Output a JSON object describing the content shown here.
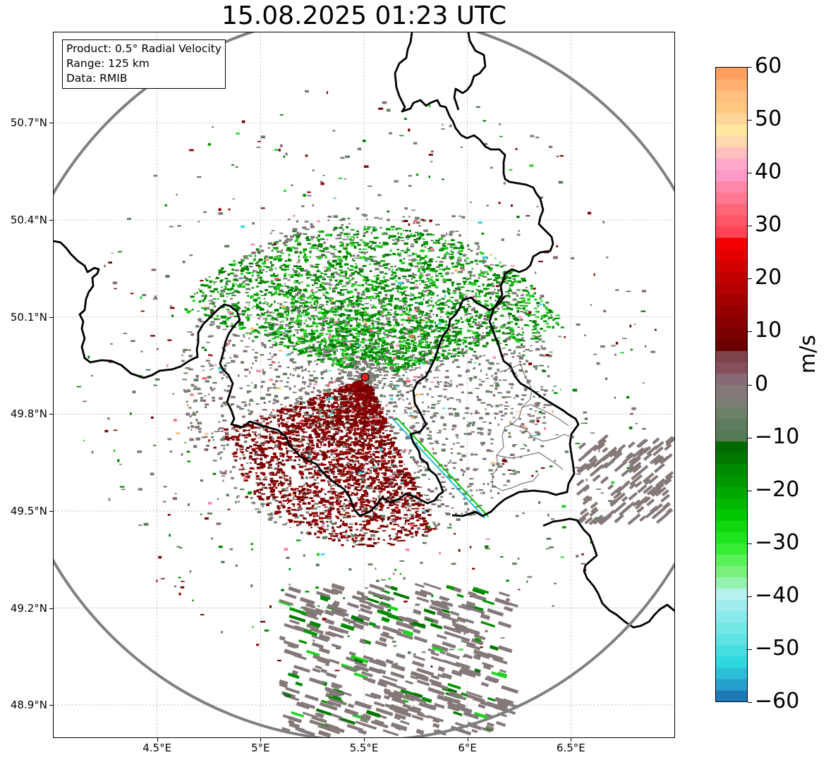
{
  "title": "15.08.2025 01:23 UTC",
  "info": {
    "product": "Product: 0.5° Radial Velocity",
    "range": "Range: 125 km",
    "source": "Data: RMIB"
  },
  "map": {
    "lon_range": [
      4.0,
      7.0
    ],
    "lat_range": [
      48.8,
      50.98
    ],
    "radar_site": {
      "lon": 5.505,
      "lat": 49.914
    },
    "range_km": 125,
    "lat_ticks": [
      "50.7°N",
      "50.4°N",
      "50.1°N",
      "49.8°N",
      "49.5°N",
      "49.2°N",
      "48.9°N"
    ],
    "lat_values": [
      50.7,
      50.4,
      50.1,
      49.8,
      49.5,
      49.2,
      48.9
    ],
    "lon_ticks": [
      "4.5°E",
      "5°E",
      "5.5°E",
      "6°E",
      "6.5°E"
    ],
    "lon_values": [
      4.5,
      5.0,
      5.5,
      6.0,
      6.5
    ]
  },
  "colorbar": {
    "unit": "m/s",
    "min": -60,
    "max": 60,
    "tick_labels": [
      "60",
      "50",
      "40",
      "30",
      "20",
      "10",
      "0",
      "−10",
      "−20",
      "−30",
      "−40",
      "−50",
      "−60"
    ],
    "tick_values": [
      60,
      50,
      40,
      30,
      20,
      10,
      0,
      -10,
      -20,
      -30,
      -40,
      -50,
      -60
    ],
    "colors": [
      "#1f78b4",
      "#26a0cc",
      "#2cc0d8",
      "#2ed8dc",
      "#45dde0",
      "#5ee2e2",
      "#73e6e6",
      "#8ae9ea",
      "#a0ecee",
      "#b8efef",
      "#96f0b0",
      "#78f07a",
      "#5af05a",
      "#35ee35",
      "#1de41d",
      "#0fd80f",
      "#00c800",
      "#00b800",
      "#00a800",
      "#009800",
      "#008a00",
      "#007800",
      "#006a00",
      "#557a55",
      "#607c60",
      "#6d8068",
      "#7f7d78",
      "#857878",
      "#876a78",
      "#874f5a",
      "#7e4248",
      "#6a0000",
      "#7a0000",
      "#870000",
      "#940000",
      "#a30000",
      "#b30000",
      "#c30000",
      "#d30000",
      "#e40000",
      "#f40000",
      "#ff4455",
      "#ff5566",
      "#ff6677",
      "#ff7790",
      "#ff88aa",
      "#ff99c8",
      "#ffaacc",
      "#ffbfbf",
      "#ffd8b0",
      "#ffe8a0",
      "#ffd699",
      "#ffc880",
      "#ffbf80",
      "#ffb070",
      "#ffa060"
    ]
  }
}
